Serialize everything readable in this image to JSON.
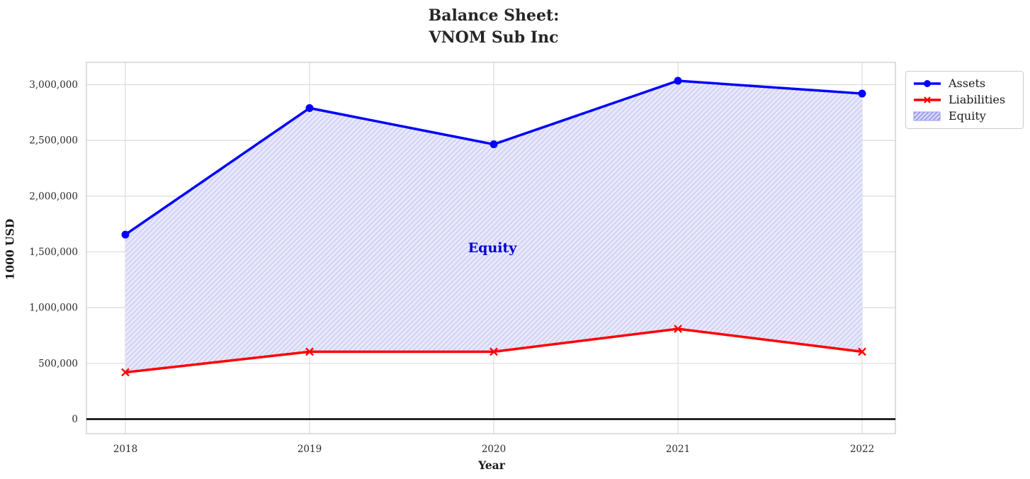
{
  "title": "Balance Sheet:\nVNOM Sub Inc",
  "chart_data": {
    "type": "line",
    "title": "Balance Sheet: VNOM Sub Inc",
    "xlabel": "Year",
    "ylabel": "1000 USD",
    "x": [
      2018,
      2019,
      2020,
      2021,
      2022
    ],
    "xtick_labels": [
      "2018",
      "2019",
      "2020",
      "2021",
      "2022"
    ],
    "yticks": [
      0,
      500000,
      1000000,
      1500000,
      2000000,
      2500000,
      3000000
    ],
    "ytick_labels": [
      "0",
      "500,000",
      "1,000,000",
      "1,500,000",
      "2,000,000",
      "2,500,000",
      "3,000,000"
    ],
    "ylim": [
      -130000,
      3200000
    ],
    "grid": true,
    "series": [
      {
        "name": "Assets",
        "color": "#0000ff",
        "marker": "circle",
        "values": [
          1655000,
          2790000,
          2465000,
          3035000,
          2920000
        ]
      },
      {
        "name": "Liabilities",
        "color": "#ff0000",
        "marker": "x",
        "values": [
          420000,
          605000,
          605000,
          810000,
          605000
        ]
      }
    ],
    "fill_between": {
      "label": "Equity",
      "between": [
        "Liabilities",
        "Assets"
      ],
      "hatch": "//"
    },
    "annotation": "Equity",
    "legend_entries": [
      "Assets",
      "Liabilities",
      "Equity"
    ],
    "legend_position": "upper right, outside plot"
  },
  "colors": {
    "assets_line": "#0000ff",
    "liabilities_line": "#ff0000",
    "equity_fill": "#e9e9fc",
    "equity_hatch": "#cfcff6",
    "legend_patch_fill": "#d9d9f8",
    "legend_patch_hatch": "#8f8fee",
    "annotation_text": "#0000cc",
    "grid_line": "#d9d9d9",
    "spine": "#cfcfcf",
    "zero_line": "#000000",
    "tick_text": "#2b2b2b",
    "title_text": "#262626"
  },
  "legend": {
    "items": [
      {
        "label": "Assets"
      },
      {
        "label": "Liabilities"
      },
      {
        "label": "Equity"
      }
    ]
  }
}
